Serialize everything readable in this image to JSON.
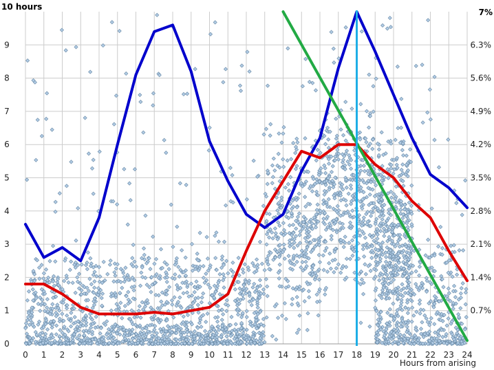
{
  "chart_data": {
    "type": "scatter",
    "title": "",
    "xlabel": "Hours from arising",
    "y_left_top_label": "10 hours",
    "y_right_top_label": "7%",
    "xlim": [
      0,
      24
    ],
    "ylim": [
      0,
      10
    ],
    "ylim_right": [
      0,
      7
    ],
    "x_ticks": [
      0,
      1,
      2,
      3,
      4,
      5,
      6,
      7,
      8,
      9,
      10,
      11,
      12,
      13,
      14,
      15,
      16,
      17,
      18,
      19,
      20,
      21,
      22,
      23,
      24
    ],
    "y_ticks": [
      0,
      1,
      2,
      3,
      4,
      5,
      6,
      7,
      8,
      9
    ],
    "y_right_ticks": [
      "0.7%",
      "1.4%",
      "2.1%",
      "2.8%",
      "3.5%",
      "4.2%",
      "4.9%",
      "5.6%",
      "6.3%"
    ],
    "grid": true,
    "colors": {
      "points_fill": "#b3cde6",
      "points_stroke": "#6f8fab",
      "blue_line": "#0000cc",
      "red_line": "#dd0000",
      "green_line": "#22aa44",
      "cyan_line": "#1eaee6",
      "grid": "#cccccc"
    },
    "series": [
      {
        "type": "line",
        "color": "#0000cc",
        "x": [
          0,
          1,
          2,
          3,
          4,
          5,
          6,
          7,
          8,
          9,
          10,
          11,
          12,
          13,
          14,
          15,
          16,
          17,
          18,
          19,
          20,
          21,
          22,
          23,
          24
        ],
        "y": [
          3.6,
          2.6,
          2.9,
          2.5,
          3.8,
          6.0,
          8.1,
          9.4,
          9.6,
          8.2,
          6.1,
          4.9,
          3.9,
          3.5,
          3.9,
          5.2,
          6.2,
          8.3,
          10.0,
          8.8,
          7.5,
          6.2,
          5.1,
          4.7,
          4.1
        ]
      },
      {
        "type": "line",
        "color": "#dd0000",
        "x": [
          0,
          1,
          2,
          3,
          4,
          5,
          6,
          7,
          8,
          9,
          10,
          11,
          12,
          13,
          14,
          15,
          16,
          17,
          18,
          19,
          20,
          21,
          22,
          23,
          24
        ],
        "y": [
          1.8,
          1.8,
          1.5,
          1.1,
          0.9,
          0.9,
          0.9,
          0.95,
          0.9,
          1.0,
          1.1,
          1.5,
          2.8,
          4.0,
          4.9,
          5.8,
          5.6,
          6.0,
          6.0,
          5.4,
          5.0,
          4.3,
          3.8,
          2.8,
          1.9
        ]
      },
      {
        "type": "line",
        "color": "#22aa44",
        "x": [
          14,
          24
        ],
        "y": [
          10.0,
          0.1
        ]
      },
      {
        "type": "vline",
        "color": "#1eaee6",
        "x": 18
      }
    ]
  }
}
